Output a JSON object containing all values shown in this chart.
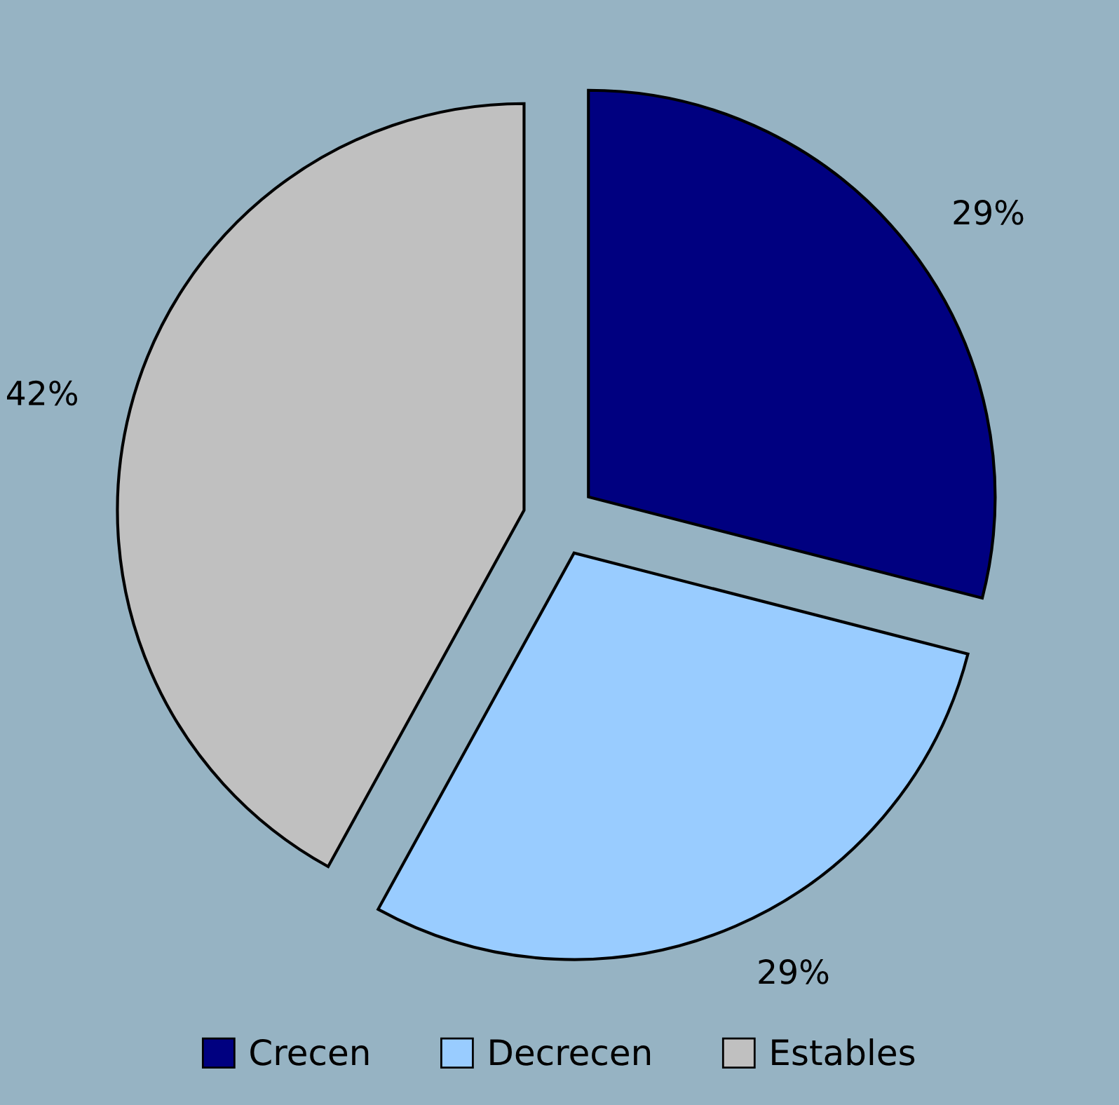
{
  "chart_data": {
    "type": "pie",
    "categories": [
      "Crecen",
      "Decrecen",
      "Estables"
    ],
    "values": [
      29,
      29,
      42
    ],
    "value_labels": [
      "29%",
      "29%",
      "42%"
    ],
    "colors": [
      "#000080",
      "#99ccff",
      "#c0c0c0"
    ],
    "legend": "bottom"
  }
}
